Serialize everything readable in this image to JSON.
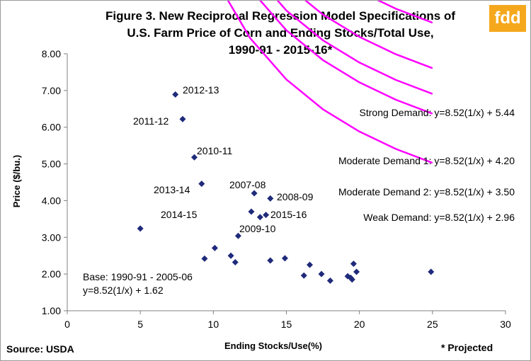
{
  "brand": {
    "logo_text": "fdd",
    "logo_color": "#f5a81c"
  },
  "source": "Source: USDA",
  "footnote": "* Projected",
  "chart_data": {
    "type": "scatter",
    "title": "Figure 3. New Reciprocal Regression Model Specifications of",
    "title_line2": "U.S. Farm Price of Corn and Ending Stocks/Total Use,",
    "title_line3": "1990-91  - 2015-16*",
    "xlabel": "Ending Stocks/Use(%)",
    "ylabel": "Price ($/bu.)",
    "xlim": [
      0,
      30
    ],
    "ylim": [
      1.0,
      8.0
    ],
    "xticks": [
      "0",
      "5",
      "10",
      "15",
      "20",
      "25",
      "30"
    ],
    "yticks": [
      "1.00",
      "2.00",
      "3.00",
      "4.00",
      "5.00",
      "6.00",
      "7.00",
      "8.00"
    ],
    "grid": false,
    "marker_color": "#1f2a7a",
    "curve_color": "#ff00ff",
    "points": [
      {
        "x": 5.0,
        "y": 3.24
      },
      {
        "x": 7.4,
        "y": 6.89,
        "label": "2012-13"
      },
      {
        "x": 7.9,
        "y": 6.22,
        "label": "2011-12"
      },
      {
        "x": 8.7,
        "y": 5.18,
        "label": "2010-11"
      },
      {
        "x": 9.2,
        "y": 4.46,
        "label": "2013-14"
      },
      {
        "x": 9.4,
        "y": 2.42
      },
      {
        "x": 10.1,
        "y": 2.71
      },
      {
        "x": 11.2,
        "y": 2.5
      },
      {
        "x": 11.5,
        "y": 2.32
      },
      {
        "x": 11.7,
        "y": 3.04
      },
      {
        "x": 12.6,
        "y": 3.7,
        "label": "2014-15"
      },
      {
        "x": 12.8,
        "y": 4.2,
        "label": "2007-08"
      },
      {
        "x": 13.2,
        "y": 3.55,
        "label": "2009-10"
      },
      {
        "x": 13.6,
        "y": 3.61,
        "label": "2015-16"
      },
      {
        "x": 13.9,
        "y": 4.06,
        "label": "2008-09"
      },
      {
        "x": 13.9,
        "y": 2.37
      },
      {
        "x": 14.9,
        "y": 2.43
      },
      {
        "x": 16.2,
        "y": 1.96
      },
      {
        "x": 16.6,
        "y": 2.25
      },
      {
        "x": 17.4,
        "y": 2.0
      },
      {
        "x": 18.0,
        "y": 1.82
      },
      {
        "x": 19.2,
        "y": 1.94
      },
      {
        "x": 19.4,
        "y": 1.9
      },
      {
        "x": 19.5,
        "y": 1.85
      },
      {
        "x": 19.6,
        "y": 2.28
      },
      {
        "x": 19.8,
        "y": 2.06
      },
      {
        "x": 24.9,
        "y": 2.06
      }
    ],
    "curves": [
      {
        "label": "Strong Demand: y=8.52(1/x) + 5.44",
        "a": 8.52,
        "b": 5.44
      },
      {
        "label": "Moderate Demand 1: y=8.52(1/x) + 4.20",
        "a": 8.52,
        "b": 4.2
      },
      {
        "label": "Moderate Demand 2: y=8.52(1/x) + 3.50",
        "a": 8.52,
        "b": 3.5
      },
      {
        "label": "Weak Demand: y=8.52(1/x) + 2.96",
        "a": 8.52,
        "b": 2.96
      },
      {
        "label": "Base: 1990-91 - 2005-06",
        "label_line2": "y=8.52(1/x) + 1.62",
        "a": 8.52,
        "b": 1.62
      }
    ],
    "curve_x": [
      5,
      7.5,
      10,
      12.5,
      15,
      17.5,
      20,
      22.5,
      25
    ]
  }
}
